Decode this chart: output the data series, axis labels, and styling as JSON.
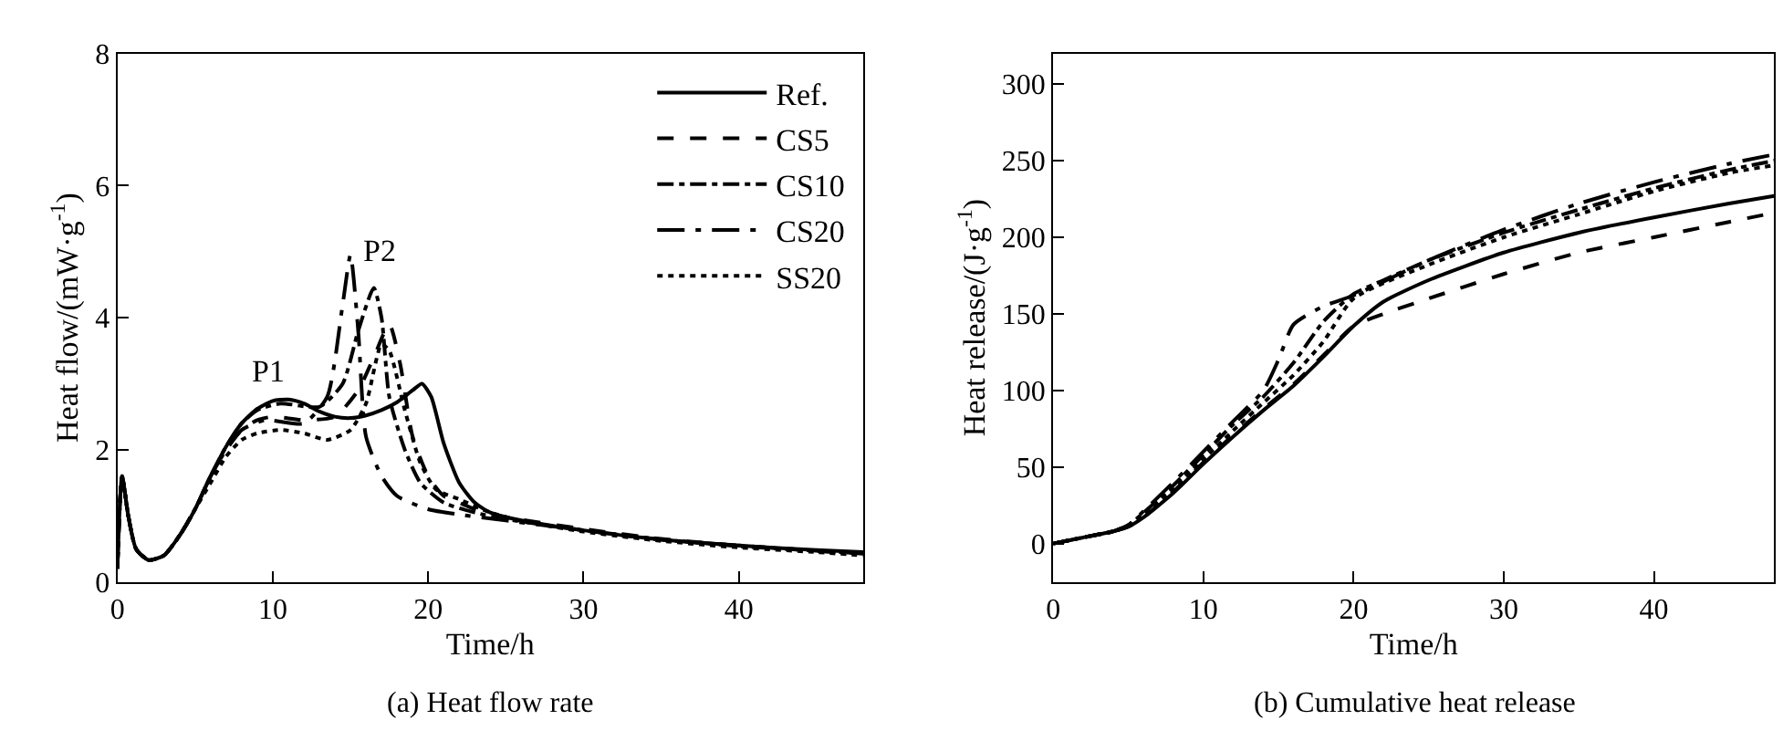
{
  "chart_data": [
    {
      "type": "line",
      "title": "(a) Heat flow rate",
      "xlabel": "Time/h",
      "ylabel": "Heat flow/(mW·g$^{-1}$)",
      "xlim": [
        0,
        48
      ],
      "xticks": [
        0,
        10,
        20,
        30,
        40
      ],
      "ylim": [
        0,
        8
      ],
      "yticks": [
        0,
        2,
        4,
        6,
        8
      ],
      "legend": "top right",
      "annotations": [
        "P1",
        "P2"
      ],
      "series": [
        {
          "name": "Ref.",
          "color": "#000000",
          "line_style": "solid",
          "x": [
            0,
            0.3,
            0.7,
            1.2,
            2,
            3,
            4,
            5,
            6,
            7,
            8,
            9,
            10,
            11,
            12,
            13,
            14,
            15,
            16,
            17,
            18,
            19,
            19.6,
            20.2,
            21,
            22,
            23,
            24,
            26,
            30,
            35,
            40,
            45,
            48
          ],
          "values": [
            0.2,
            1.6,
            1.0,
            0.5,
            0.33,
            0.4,
            0.7,
            1.1,
            1.6,
            2.05,
            2.4,
            2.62,
            2.74,
            2.76,
            2.7,
            2.58,
            2.5,
            2.48,
            2.52,
            2.6,
            2.72,
            2.9,
            3.0,
            2.8,
            2.1,
            1.5,
            1.2,
            1.05,
            0.93,
            0.78,
            0.64,
            0.55,
            0.48,
            0.45
          ]
        },
        {
          "name": "CS5",
          "color": "#000000",
          "line_style": "dashed",
          "x": [
            0,
            0.3,
            0.7,
            1.2,
            2,
            3,
            4,
            5,
            6,
            7,
            8,
            9,
            10,
            12,
            14,
            15.5,
            16.5,
            17.5,
            18.2,
            19,
            20,
            21,
            22,
            23,
            25,
            30,
            35,
            40,
            45,
            48
          ],
          "values": [
            0.2,
            1.6,
            1.0,
            0.5,
            0.33,
            0.4,
            0.7,
            1.1,
            1.6,
            2.0,
            2.3,
            2.45,
            2.5,
            2.45,
            2.5,
            2.9,
            3.4,
            3.9,
            3.3,
            2.2,
            1.6,
            1.3,
            1.2,
            1.1,
            0.98,
            0.8,
            0.65,
            0.55,
            0.47,
            0.43
          ]
        },
        {
          "name": "CS10",
          "color": "#000000",
          "line_style": "dashdot",
          "x": [
            0,
            0.3,
            0.7,
            1.2,
            2,
            3,
            4,
            5,
            6,
            7,
            8,
            9,
            10.5,
            13,
            14.5,
            15.5,
            16.5,
            17,
            17.5,
            18.5,
            19.5,
            21,
            23,
            25,
            30,
            35,
            40,
            45,
            48
          ],
          "values": [
            0.2,
            1.6,
            1.0,
            0.5,
            0.33,
            0.4,
            0.7,
            1.1,
            1.6,
            2.05,
            2.4,
            2.6,
            2.7,
            2.65,
            3.0,
            3.8,
            4.45,
            4.0,
            2.8,
            2.0,
            1.5,
            1.2,
            1.05,
            0.95,
            0.78,
            0.64,
            0.54,
            0.47,
            0.43
          ]
        },
        {
          "name": "CS20",
          "color": "#000000",
          "line_style": "longdashdot",
          "x": [
            0,
            0.3,
            0.7,
            1.2,
            2,
            3,
            4,
            5,
            6,
            7,
            8,
            9.5,
            12,
            13.5,
            14.5,
            15,
            15.5,
            16,
            17,
            18,
            20,
            22,
            25,
            30,
            35,
            40,
            45,
            48
          ],
          "values": [
            0.2,
            1.6,
            1.0,
            0.5,
            0.33,
            0.4,
            0.7,
            1.1,
            1.6,
            2.0,
            2.3,
            2.45,
            2.4,
            2.8,
            4.2,
            4.95,
            3.8,
            2.2,
            1.6,
            1.3,
            1.1,
            1.02,
            0.93,
            0.78,
            0.64,
            0.55,
            0.47,
            0.43
          ]
        },
        {
          "name": "SS20",
          "color": "#000000",
          "line_style": "dotted",
          "x": [
            0,
            0.3,
            0.7,
            1.2,
            2,
            3,
            4,
            5,
            6,
            7,
            8,
            9,
            10.5,
            12,
            13.5,
            15,
            16,
            17,
            17.5,
            18.5,
            19.5,
            20.5,
            22,
            24,
            26,
            30,
            35,
            40,
            45,
            48
          ],
          "values": [
            0.2,
            1.6,
            1.0,
            0.5,
            0.33,
            0.4,
            0.7,
            1.1,
            1.5,
            1.9,
            2.15,
            2.25,
            2.3,
            2.25,
            2.15,
            2.3,
            2.7,
            3.6,
            3.5,
            2.6,
            1.8,
            1.4,
            1.25,
            1.05,
            0.92,
            0.76,
            0.62,
            0.52,
            0.45,
            0.4
          ]
        }
      ]
    },
    {
      "type": "line",
      "title": "(b) Cumulative heat release",
      "xlabel": "Time/h",
      "ylabel": "Heat release/(J·g$^{-1}$)",
      "xlim": [
        0,
        48
      ],
      "xticks": [
        0,
        10,
        20,
        30,
        40
      ],
      "ylim": [
        -25,
        320
      ],
      "yticks": [
        0,
        50,
        100,
        150,
        200,
        250,
        300
      ],
      "series": [
        {
          "color": "#000000",
          "line_style": "solid",
          "x": [
            0,
            2,
            4,
            5,
            6,
            8,
            10,
            12,
            14,
            16,
            18,
            20,
            22,
            25,
            30,
            35,
            40,
            45,
            48
          ],
          "values": [
            0,
            4,
            8,
            11,
            17,
            33,
            52,
            70,
            87,
            103,
            122,
            142,
            158,
            172,
            190,
            203,
            213,
            222,
            227
          ]
        },
        {
          "color": "#000000",
          "line_style": "dashed",
          "x": [
            0,
            2,
            4,
            5,
            6,
            8,
            10,
            12,
            14,
            16,
            18,
            20,
            22,
            25,
            30,
            35,
            40,
            45,
            48
          ],
          "values": [
            0,
            4,
            8,
            11,
            17,
            34,
            53,
            71,
            88,
            104,
            123,
            142,
            150,
            160,
            176,
            190,
            200,
            210,
            216
          ]
        },
        {
          "color": "#000000",
          "line_style": "dashdot",
          "x": [
            0,
            2,
            4,
            5,
            6,
            8,
            10,
            12,
            14,
            16,
            18,
            20,
            22,
            25,
            30,
            35,
            40,
            45,
            48
          ],
          "values": [
            0,
            4,
            8,
            12,
            20,
            38,
            58,
            78,
            96,
            118,
            145,
            163,
            172,
            185,
            203,
            218,
            232,
            244,
            250
          ]
        },
        {
          "color": "#000000",
          "line_style": "longdashdot",
          "x": [
            0,
            2,
            4,
            5,
            6,
            8,
            10,
            12,
            14,
            15,
            16,
            18,
            20,
            25,
            30,
            35,
            40,
            45,
            48
          ],
          "values": [
            0,
            4,
            8,
            12,
            21,
            40,
            60,
            80,
            100,
            120,
            143,
            155,
            162,
            185,
            205,
            222,
            236,
            248,
            254
          ]
        },
        {
          "color": "#000000",
          "line_style": "dotted",
          "x": [
            0,
            2,
            4,
            5,
            6,
            8,
            10,
            12,
            14,
            16,
            18,
            20,
            25,
            30,
            35,
            40,
            45,
            48
          ],
          "values": [
            0,
            4,
            8,
            12,
            19,
            36,
            55,
            74,
            92,
            110,
            132,
            160,
            182,
            200,
            215,
            230,
            242,
            247
          ]
        }
      ]
    }
  ]
}
